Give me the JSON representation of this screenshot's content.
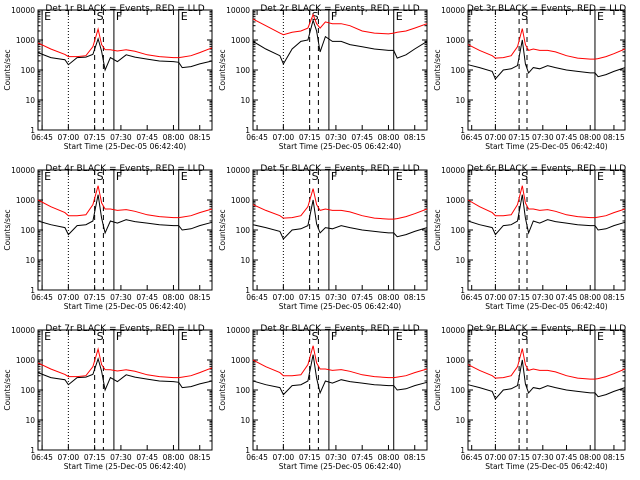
{
  "colors": {
    "background": "#ffffff",
    "events": "#000000",
    "lld": "#ff0000",
    "axes": "#000000"
  },
  "time_ticks": [
    "06:45",
    "07:00",
    "07:15",
    "07:30",
    "07:45",
    "08:00",
    "08:15"
  ],
  "y_ticks": [
    "1",
    "10",
    "100",
    "1000",
    "10000"
  ],
  "ylabel": "Counts/sec",
  "xlabel": "Start Time (25-Dec-05 06:42:40)",
  "chart_data": [
    {
      "type": "line",
      "title": "Det 1r BLACK = Events, RED = LLD",
      "ylabel": "Counts/sec",
      "xlabel": "Start Time (25-Dec-05 06:42:40)",
      "xlim": [
        "06:42:40",
        "08:22:00"
      ],
      "ylim": [
        1,
        10000
      ],
      "y_scale": "log",
      "markers": [
        {
          "label": "E",
          "time": "06:45",
          "style": "solid"
        },
        {
          "label": "",
          "time": "07:00",
          "style": "dotted"
        },
        {
          "label": "S",
          "time": "07:15",
          "style": "dashed"
        },
        {
          "label": "",
          "time": "07:20",
          "style": "dashed"
        },
        {
          "label": "F",
          "time": "07:26",
          "style": "solid"
        },
        {
          "label": "E",
          "time": "08:03",
          "style": "solid"
        }
      ],
      "x": [
        "06:42:40",
        "06:50",
        "06:58",
        "07:00",
        "07:05",
        "07:10",
        "07:14",
        "07:17",
        "07:19",
        "07:21",
        "07:24",
        "07:28",
        "07:33",
        "07:38",
        "07:45",
        "07:52",
        "08:00",
        "08:03",
        "08:05",
        "08:10",
        "08:15",
        "08:22"
      ],
      "series": [
        {
          "name": "BLACK = Events",
          "values": [
            380,
            260,
            220,
            150,
            260,
            270,
            330,
            1100,
            420,
            100,
            260,
            190,
            320,
            270,
            230,
            200,
            190,
            180,
            120,
            130,
            160,
            200
          ]
        },
        {
          "name": "RED = LLD",
          "values": [
            800,
            500,
            330,
            280,
            280,
            300,
            600,
            2300,
            700,
            480,
            470,
            430,
            470,
            420,
            320,
            280,
            260,
            260,
            270,
            300,
            380,
            550
          ]
        }
      ]
    },
    {
      "type": "line",
      "title": "Det 2r BLACK = Events, RED = LLD",
      "ylabel": "Counts/sec",
      "xlabel": "Start Time (25-Dec-05 06:42:40)",
      "xlim": [
        "06:42:40",
        "08:22:00"
      ],
      "ylim": [
        1,
        10000
      ],
      "y_scale": "log",
      "markers": [
        {
          "label": "",
          "time": "07:00",
          "style": "dotted"
        },
        {
          "label": "S",
          "time": "07:15",
          "style": "dashed"
        },
        {
          "label": "",
          "time": "07:20",
          "style": "dashed"
        },
        {
          "label": "F",
          "time": "07:26",
          "style": "solid"
        },
        {
          "label": "E",
          "time": "08:03",
          "style": "solid"
        }
      ],
      "x": [
        "06:42:40",
        "06:50",
        "06:58",
        "07:00",
        "07:05",
        "07:10",
        "07:14",
        "07:17",
        "07:19",
        "07:21",
        "07:24",
        "07:28",
        "07:33",
        "07:38",
        "07:45",
        "07:52",
        "08:00",
        "08:03",
        "08:05",
        "08:10",
        "08:15",
        "08:22"
      ],
      "series": [
        {
          "name": "BLACK = Events",
          "values": [
            900,
            500,
            300,
            160,
            500,
            900,
            1000,
            4500,
            2000,
            400,
            1300,
            900,
            900,
            700,
            600,
            500,
            450,
            450,
            250,
            320,
            500,
            900
          ]
        },
        {
          "name": "RED = LLD",
          "values": [
            5000,
            3000,
            1700,
            1500,
            1800,
            2000,
            2500,
            7000,
            3500,
            2500,
            4000,
            3500,
            3500,
            3000,
            2000,
            1700,
            1600,
            1700,
            1800,
            2000,
            2500,
            3500
          ]
        }
      ]
    },
    {
      "type": "line",
      "title": "Det 3r BLACK = Events, RED = LLD",
      "ylabel": "Counts/sec",
      "xlabel": "Start Time (25-Dec-05 06:42:40)",
      "xlim": [
        "06:42:40",
        "08:22:00"
      ],
      "ylim": [
        1,
        10000
      ],
      "y_scale": "log",
      "markers": [
        {
          "label": "",
          "time": "07:00",
          "style": "dotted"
        },
        {
          "label": "S",
          "time": "07:15",
          "style": "dashed"
        },
        {
          "label": "",
          "time": "07:20",
          "style": "dashed"
        },
        {
          "label": "E",
          "time": "08:03",
          "style": "solid"
        }
      ],
      "x": [
        "06:42:40",
        "06:50",
        "06:58",
        "07:00",
        "07:05",
        "07:10",
        "07:14",
        "07:17",
        "07:19",
        "07:21",
        "07:24",
        "07:28",
        "07:33",
        "07:38",
        "07:45",
        "07:52",
        "08:00",
        "08:03",
        "08:05",
        "08:10",
        "08:15",
        "08:22"
      ],
      "series": [
        {
          "name": "BLACK = Events",
          "values": [
            150,
            120,
            90,
            50,
            100,
            110,
            140,
            1000,
            160,
            80,
            120,
            110,
            140,
            120,
            100,
            90,
            80,
            80,
            60,
            70,
            90,
            120
          ]
        },
        {
          "name": "RED = LLD",
          "values": [
            700,
            450,
            300,
            250,
            260,
            300,
            600,
            2400,
            700,
            450,
            500,
            450,
            450,
            400,
            300,
            250,
            230,
            230,
            240,
            280,
            350,
            500
          ]
        }
      ]
    },
    {
      "type": "line",
      "title": "Det 4r BLACK = Events, RED = LLD",
      "ylabel": "Counts/sec",
      "xlabel": "Start Time (25-Dec-05 06:42:40)",
      "xlim": [
        "06:42:40",
        "08:22:00"
      ],
      "ylim": [
        1,
        10000
      ],
      "y_scale": "log",
      "markers": [
        {
          "label": "E",
          "time": "06:45",
          "style": "solid"
        },
        {
          "label": "",
          "time": "07:00",
          "style": "dotted"
        },
        {
          "label": "S",
          "time": "07:15",
          "style": "dashed"
        },
        {
          "label": "",
          "time": "07:20",
          "style": "dashed"
        },
        {
          "label": "F",
          "time": "07:26",
          "style": "solid"
        },
        {
          "label": "E",
          "time": "08:03",
          "style": "solid"
        }
      ],
      "x": [
        "06:42:40",
        "06:50",
        "06:58",
        "07:00",
        "07:05",
        "07:10",
        "07:14",
        "07:17",
        "07:19",
        "07:21",
        "07:24",
        "07:28",
        "07:33",
        "07:38",
        "07:45",
        "07:52",
        "08:00",
        "08:03",
        "08:05",
        "08:10",
        "08:15",
        "08:22"
      ],
      "series": [
        {
          "name": "BLACK = Events",
          "values": [
            200,
            150,
            120,
            70,
            140,
            150,
            200,
            1500,
            250,
            80,
            200,
            170,
            220,
            190,
            170,
            150,
            140,
            140,
            100,
            110,
            140,
            180
          ]
        },
        {
          "name": "RED = LLD",
          "values": [
            1000,
            600,
            380,
            300,
            300,
            320,
            700,
            3000,
            800,
            500,
            500,
            450,
            480,
            420,
            320,
            280,
            260,
            260,
            270,
            300,
            380,
            500
          ]
        }
      ]
    },
    {
      "type": "line",
      "title": "Det 5r BLACK = Events, RED = LLD",
      "ylabel": "Counts/sec",
      "xlabel": "Start Time (25-Dec-05 06:42:40)",
      "xlim": [
        "06:42:40",
        "08:22:00"
      ],
      "ylim": [
        1,
        10000
      ],
      "y_scale": "log",
      "markers": [
        {
          "label": "",
          "time": "07:00",
          "style": "dotted"
        },
        {
          "label": "S",
          "time": "07:15",
          "style": "dashed"
        },
        {
          "label": "",
          "time": "07:20",
          "style": "dashed"
        },
        {
          "label": "F",
          "time": "07:26",
          "style": "solid"
        },
        {
          "label": "E",
          "time": "08:03",
          "style": "solid"
        }
      ],
      "x": [
        "06:42:40",
        "06:50",
        "06:58",
        "07:00",
        "07:05",
        "07:10",
        "07:14",
        "07:17",
        "07:19",
        "07:21",
        "07:24",
        "07:28",
        "07:33",
        "07:38",
        "07:45",
        "07:52",
        "08:00",
        "08:03",
        "08:05",
        "08:10",
        "08:15",
        "08:22"
      ],
      "series": [
        {
          "name": "BLACK = Events",
          "values": [
            150,
            120,
            90,
            50,
            100,
            110,
            140,
            1000,
            160,
            80,
            120,
            110,
            140,
            120,
            100,
            90,
            80,
            80,
            60,
            70,
            90,
            120
          ]
        },
        {
          "name": "RED = LLD",
          "values": [
            700,
            450,
            300,
            250,
            260,
            300,
            600,
            2400,
            700,
            450,
            500,
            450,
            450,
            400,
            300,
            250,
            230,
            230,
            240,
            280,
            350,
            500
          ]
        }
      ]
    },
    {
      "type": "line",
      "title": "Det 6r BLACK = Events, RED = LLD",
      "ylabel": "Counts/sec",
      "xlabel": "Start Time (25-Dec-05 06:42:40)",
      "xlim": [
        "06:42:40",
        "08:22:00"
      ],
      "ylim": [
        1,
        10000
      ],
      "y_scale": "log",
      "markers": [
        {
          "label": "",
          "time": "07:00",
          "style": "dotted"
        },
        {
          "label": "S",
          "time": "07:15",
          "style": "dashed"
        },
        {
          "label": "",
          "time": "07:20",
          "style": "dashed"
        },
        {
          "label": "E",
          "time": "08:03",
          "style": "solid"
        }
      ],
      "x": [
        "06:42:40",
        "06:50",
        "06:58",
        "07:00",
        "07:05",
        "07:10",
        "07:14",
        "07:17",
        "07:19",
        "07:21",
        "07:24",
        "07:28",
        "07:33",
        "07:38",
        "07:45",
        "07:52",
        "08:00",
        "08:03",
        "08:05",
        "08:10",
        "08:15",
        "08:22"
      ],
      "series": [
        {
          "name": "BLACK = Events",
          "values": [
            200,
            150,
            120,
            70,
            140,
            150,
            200,
            1500,
            250,
            80,
            200,
            170,
            220,
            190,
            170,
            150,
            140,
            140,
            100,
            110,
            140,
            180
          ]
        },
        {
          "name": "RED = LLD",
          "values": [
            1000,
            600,
            380,
            300,
            300,
            320,
            700,
            3000,
            800,
            500,
            500,
            450,
            480,
            420,
            320,
            280,
            260,
            260,
            270,
            300,
            380,
            500
          ]
        }
      ]
    },
    {
      "type": "line",
      "title": "Det 7r BLACK = Events, RED = LLD",
      "ylabel": "Counts/sec",
      "xlabel": "Start Time (25-Dec-05 06:42:40)",
      "xlim": [
        "06:42:40",
        "08:22:00"
      ],
      "ylim": [
        1,
        10000
      ],
      "y_scale": "log",
      "markers": [
        {
          "label": "E",
          "time": "06:45",
          "style": "solid"
        },
        {
          "label": "",
          "time": "07:00",
          "style": "dotted"
        },
        {
          "label": "S",
          "time": "07:15",
          "style": "dashed"
        },
        {
          "label": "",
          "time": "07:20",
          "style": "dashed"
        },
        {
          "label": "F",
          "time": "07:26",
          "style": "solid"
        },
        {
          "label": "E",
          "time": "08:03",
          "style": "solid"
        }
      ],
      "x": [
        "06:42:40",
        "06:50",
        "06:58",
        "07:00",
        "07:05",
        "07:10",
        "07:14",
        "07:17",
        "07:19",
        "07:21",
        "07:24",
        "07:28",
        "07:33",
        "07:38",
        "07:45",
        "07:52",
        "08:00",
        "08:03",
        "08:05",
        "08:10",
        "08:15",
        "08:22"
      ],
      "series": [
        {
          "name": "BLACK = Events",
          "values": [
            380,
            260,
            220,
            150,
            260,
            270,
            330,
            1100,
            420,
            100,
            260,
            190,
            320,
            270,
            230,
            200,
            190,
            180,
            120,
            130,
            160,
            200
          ]
        },
        {
          "name": "RED = LLD",
          "values": [
            800,
            500,
            330,
            280,
            280,
            300,
            600,
            2300,
            700,
            480,
            470,
            430,
            470,
            420,
            320,
            280,
            260,
            260,
            270,
            300,
            380,
            550
          ]
        }
      ]
    },
    {
      "type": "line",
      "title": "Det 8r BLACK = Events, RED = LLD",
      "ylabel": "Counts/sec",
      "xlabel": "Start Time (25-Dec-05 06:42:40)",
      "xlim": [
        "06:42:40",
        "08:22:00"
      ],
      "ylim": [
        1,
        10000
      ],
      "y_scale": "log",
      "markers": [
        {
          "label": "",
          "time": "07:00",
          "style": "dotted"
        },
        {
          "label": "S",
          "time": "07:15",
          "style": "dashed"
        },
        {
          "label": "",
          "time": "07:20",
          "style": "dashed"
        },
        {
          "label": "F",
          "time": "07:26",
          "style": "solid"
        },
        {
          "label": "E",
          "time": "08:03",
          "style": "solid"
        }
      ],
      "x": [
        "06:42:40",
        "06:50",
        "06:58",
        "07:00",
        "07:05",
        "07:10",
        "07:14",
        "07:17",
        "07:19",
        "07:21",
        "07:24",
        "07:28",
        "07:33",
        "07:38",
        "07:45",
        "07:52",
        "08:00",
        "08:03",
        "08:05",
        "08:10",
        "08:15",
        "08:22"
      ],
      "series": [
        {
          "name": "BLACK = Events",
          "values": [
            200,
            150,
            120,
            70,
            140,
            150,
            200,
            1500,
            250,
            80,
            200,
            170,
            220,
            190,
            170,
            150,
            140,
            140,
            100,
            110,
            140,
            180
          ]
        },
        {
          "name": "RED = LLD",
          "values": [
            1000,
            600,
            380,
            300,
            300,
            320,
            700,
            3000,
            800,
            500,
            500,
            450,
            480,
            420,
            320,
            280,
            260,
            260,
            270,
            300,
            380,
            500
          ]
        }
      ]
    },
    {
      "type": "line",
      "title": "Det 9r BLACK = Events, RED = LLD",
      "ylabel": "Counts/sec",
      "xlabel": "Start Time (25-Dec-05 06:42:40)",
      "xlim": [
        "06:42:40",
        "08:22:00"
      ],
      "ylim": [
        1,
        10000
      ],
      "y_scale": "log",
      "markers": [
        {
          "label": "",
          "time": "07:00",
          "style": "dotted"
        },
        {
          "label": "S",
          "time": "07:15",
          "style": "dashed"
        },
        {
          "label": "",
          "time": "07:20",
          "style": "dashed"
        },
        {
          "label": "E",
          "time": "08:03",
          "style": "solid"
        }
      ],
      "x": [
        "06:42:40",
        "06:50",
        "06:58",
        "07:00",
        "07:05",
        "07:10",
        "07:14",
        "07:17",
        "07:19",
        "07:21",
        "07:24",
        "07:28",
        "07:33",
        "07:38",
        "07:45",
        "07:52",
        "08:00",
        "08:03",
        "08:05",
        "08:10",
        "08:15",
        "08:22"
      ],
      "series": [
        {
          "name": "BLACK = Events",
          "values": [
            150,
            120,
            90,
            50,
            100,
            110,
            140,
            1000,
            160,
            80,
            120,
            110,
            140,
            120,
            100,
            90,
            80,
            80,
            60,
            70,
            90,
            120
          ]
        },
        {
          "name": "RED = LLD",
          "values": [
            700,
            450,
            300,
            250,
            260,
            300,
            600,
            2400,
            700,
            450,
            500,
            450,
            450,
            400,
            300,
            250,
            230,
            230,
            240,
            280,
            350,
            500
          ]
        }
      ]
    }
  ]
}
